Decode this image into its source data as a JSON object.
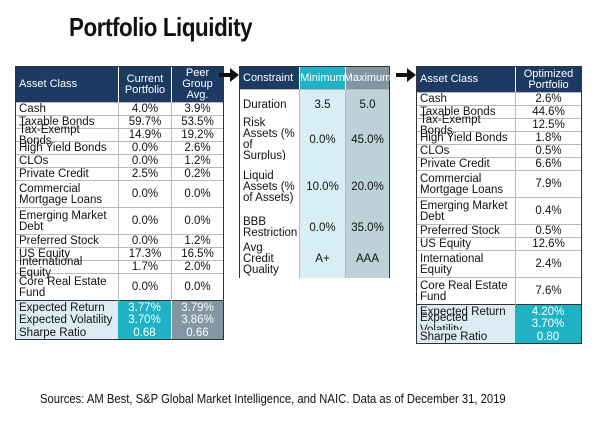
{
  "title": "Portfolio Liquidity",
  "source": "Sources: AM Best, S&P Global Market Intelligence, and NAIC. Data as of December 31, 2019",
  "chart_data": [
    {
      "type": "table",
      "headers": [
        "Asset Class",
        "Current Portfolio",
        "Peer Group Avg."
      ],
      "rows": [
        [
          "Cash",
          "4.0%",
          "3.9%"
        ],
        [
          "Taxable Bonds",
          "59.7%",
          "53.5%"
        ],
        [
          "Tax-Exempt Bonds",
          "14.9%",
          "19.2%"
        ],
        [
          "High Yield Bonds",
          "0.0%",
          "2.6%"
        ],
        [
          "CLOs",
          "0.0%",
          "1.2%"
        ],
        [
          "Private Credit",
          "2.5%",
          "0.2%"
        ],
        [
          "Commercial Mortgage Loans",
          "0.0%",
          "0.0%"
        ],
        [
          "Emerging Market Debt",
          "0.0%",
          "0.0%"
        ],
        [
          "Preferred Stock",
          "0.0%",
          "1.2%"
        ],
        [
          "US Equity",
          "17.3%",
          "16.5%"
        ],
        [
          "International Equity",
          "1.7%",
          "2.0%"
        ],
        [
          "Core Real Estate Fund",
          "0.0%",
          "0.0%"
        ]
      ],
      "summary": [
        [
          "Expected Return",
          "3.77%",
          "3.79%"
        ],
        [
          "Expected Volatility",
          "3.70%",
          "3.86%"
        ],
        [
          "Sharpe Ratio",
          "0.68",
          "0.66"
        ]
      ]
    },
    {
      "type": "table",
      "headers": [
        "Constraint",
        "Minimum",
        "Maximum"
      ],
      "rows": [
        [
          "Duration",
          "3.5",
          "5.0"
        ],
        [
          "Risk Assets (% of Surplus)",
          "0.0%",
          "45.0%"
        ],
        [
          "Liquid Assets (% of Assets)",
          "10.0%",
          "20.0%"
        ],
        [
          "BBB Restriction",
          "0.0%",
          "35.0%"
        ],
        [
          "Avg Credit Quality",
          "A+",
          "AAA"
        ]
      ]
    },
    {
      "type": "table",
      "headers": [
        "Asset Class",
        "Optimized Portfolio"
      ],
      "rows": [
        [
          "Cash",
          "2.6%"
        ],
        [
          "Taxable Bonds",
          "44.6%"
        ],
        [
          "Tax-Exempt Bonds",
          "12.5%"
        ],
        [
          "High Yield Bonds",
          "1.8%"
        ],
        [
          "CLOs",
          "0.5%"
        ],
        [
          "Private Credit",
          "6.6%"
        ],
        [
          "Commercial Mortgage Loans",
          "7.9%"
        ],
        [
          "Emerging Market Debt",
          "0.4%"
        ],
        [
          "Preferred Stock",
          "0.5%"
        ],
        [
          "US Equity",
          "12.6%"
        ],
        [
          "International Equity",
          "2.4%"
        ],
        [
          "Core Real Estate Fund",
          "7.6%"
        ]
      ],
      "summary": [
        [
          "Expected Return",
          "4.20%"
        ],
        [
          "Expected Volatility",
          "3.70%"
        ],
        [
          "Sharpe Ratio",
          "0.80"
        ]
      ]
    }
  ],
  "colors": {
    "header_navy": "#1d3a63",
    "teal": "#1fb2c4",
    "gray": "#8296a4",
    "light_blue": "#dcecf4"
  }
}
